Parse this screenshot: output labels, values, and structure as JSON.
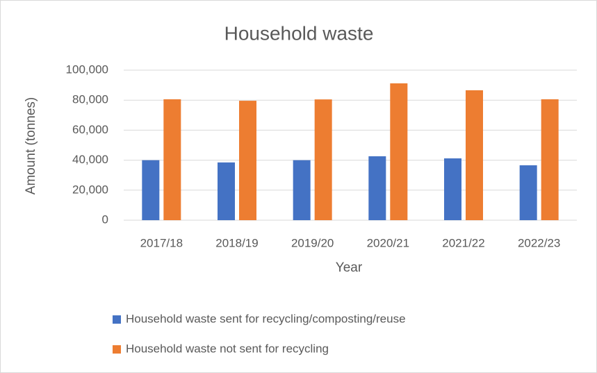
{
  "chart_data": {
    "type": "bar",
    "title": "Household waste",
    "x_label": "Year",
    "y_label": "Amount (tonnes)",
    "categories": [
      "2017/18",
      "2018/19",
      "2019/20",
      "2020/21",
      "2021/22",
      "2022/23"
    ],
    "series": [
      {
        "name": "Household waste sent for recycling/composting/reuse",
        "color": "#4472c4",
        "values": [
          40000,
          38500,
          40000,
          42600,
          41200,
          36600
        ]
      },
      {
        "name": "Household waste not sent for recycling",
        "color": "#ed7d31",
        "values": [
          80600,
          79600,
          80500,
          91200,
          86600,
          80600
        ]
      }
    ],
    "ylim": [
      0,
      100000
    ],
    "yticks": [
      0,
      {
        "value": 20000,
        "label": "20,000"
      },
      {
        "value": 40000,
        "label": "40,000"
      },
      {
        "value": 60000,
        "label": "60,000"
      },
      {
        "value": 80000,
        "label": "80,000"
      },
      {
        "value": 100000,
        "label": "100,000"
      }
    ],
    "grid": true,
    "legend": "bottom"
  }
}
